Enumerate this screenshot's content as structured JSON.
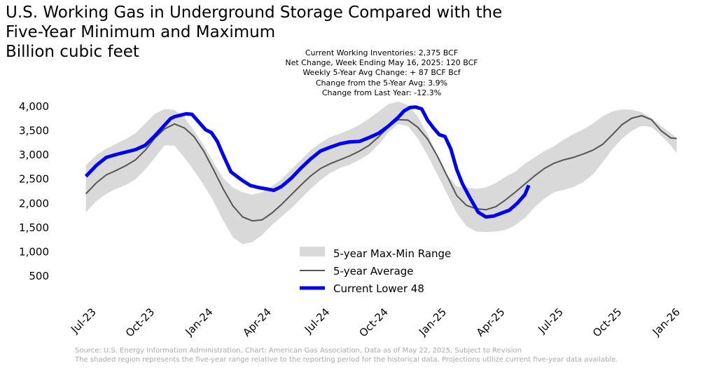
{
  "title_lines": [
    "U.S. Working Gas in Underground Storage Compared with the",
    "Five-Year Minimum and Maximum",
    "Billion cubic feet"
  ],
  "stats": {
    "current_inventory": "Current Working Inventories: 2,375 BCF",
    "net_change": "Net Change, Week Ending May 16, 2025: 120 BCF",
    "weekly_avg_change": "Weekly 5-Year Avg Change: + 87 BCF Bcf",
    "change_vs_avg": "Change from the 5-Year Avg: 3.9%",
    "change_vs_last_year": "Change from Last Year: -12.3%"
  },
  "footer": {
    "line1": "Source: U.S. Energy Information Administration, Chart: American Gas Association, Data as of May 22, 2025, Subject to Revision",
    "line2": "The shaded region represents the five-year range relative to the reporting period for the historical data. Projections utilize current five-year data available."
  },
  "colors": {
    "range_fill": "#d9d9d9",
    "average_line": "#555555",
    "current_line": "#0000ee"
  },
  "chart_data": {
    "type": "line",
    "title": "U.S. Working Gas in Underground Storage Compared with the Five-Year Minimum and Maximum",
    "ylabel": "Billion cubic feet",
    "xlabel": "",
    "x_unit": "months since Jun-2023",
    "xlim": [
      0.8,
      31.2
    ],
    "ylim": [
      0,
      4300
    ],
    "grid": false,
    "legend_position": "lower-center",
    "y_ticks": [
      {
        "value": 500,
        "label": "500"
      },
      {
        "value": 1000,
        "label": "1,000"
      },
      {
        "value": 1500,
        "label": "1,500"
      },
      {
        "value": 2000,
        "label": "2,000"
      },
      {
        "value": 2500,
        "label": "2,500"
      },
      {
        "value": 3000,
        "label": "3,000"
      },
      {
        "value": 3500,
        "label": "3,500"
      },
      {
        "value": 4000,
        "label": "4,000"
      }
    ],
    "x_ticks": [
      {
        "value": 1,
        "label": "Jul-23"
      },
      {
        "value": 4,
        "label": "Oct-23"
      },
      {
        "value": 7,
        "label": "Jan-24"
      },
      {
        "value": 10,
        "label": "Apr-24"
      },
      {
        "value": 13,
        "label": "Jul-24"
      },
      {
        "value": 16,
        "label": "Oct-24"
      },
      {
        "value": 19,
        "label": "Jan-25"
      },
      {
        "value": 22,
        "label": "Apr-25"
      },
      {
        "value": 25,
        "label": "Jul-25"
      },
      {
        "value": 28,
        "label": "Oct-25"
      },
      {
        "value": 31,
        "label": "Jan-26"
      }
    ],
    "series": [
      {
        "name": "5-year Max-Min Range",
        "kind": "band",
        "x": [
          0.45,
          1.0,
          1.5,
          2.0,
          2.5,
          3.0,
          3.5,
          4.0,
          4.5,
          5.0,
          5.5,
          6.0,
          6.5,
          7.0,
          7.5,
          8.0,
          8.5,
          9.0,
          9.5,
          10.0,
          10.5,
          11.0,
          11.5,
          12.0,
          12.5,
          13.0,
          13.5,
          14.0,
          14.5,
          15.0,
          15.5,
          16.0,
          16.5,
          17.0,
          17.5,
          18.0,
          18.5,
          19.0,
          19.5,
          20.0,
          20.5,
          21.0,
          21.5,
          22.0,
          22.5,
          23.0,
          23.5,
          24.0,
          24.5,
          25.0,
          25.5,
          26.0,
          26.5,
          27.0,
          27.5,
          28.0,
          28.5,
          29.0,
          29.5,
          30.0,
          30.5,
          30.8
        ],
        "max": [
          2790,
          3000,
          3130,
          3230,
          3330,
          3450,
          3650,
          3850,
          3950,
          3930,
          3780,
          3500,
          3200,
          2850,
          2520,
          2330,
          2230,
          2180,
          2230,
          2350,
          2500,
          2700,
          2900,
          3100,
          3250,
          3370,
          3440,
          3520,
          3620,
          3750,
          3900,
          4050,
          4100,
          4030,
          3790,
          3430,
          3000,
          2600,
          2350,
          2330,
          2300,
          2330,
          2420,
          2550,
          2650,
          2820,
          2950,
          3080,
          3180,
          3320,
          3430,
          3530,
          3650,
          3800,
          3900,
          3940,
          3930,
          3880,
          3760,
          3600,
          3450,
          3350
        ],
        "min": [
          1820,
          2050,
          2200,
          2300,
          2380,
          2500,
          2700,
          2950,
          3200,
          3190,
          2950,
          2680,
          2380,
          2050,
          1650,
          1300,
          1160,
          1200,
          1350,
          1550,
          1730,
          1900,
          2100,
          2300,
          2480,
          2630,
          2730,
          2800,
          2900,
          3020,
          3220,
          3470,
          3640,
          3590,
          3340,
          2990,
          2600,
          2200,
          1800,
          1530,
          1420,
          1410,
          1420,
          1450,
          1550,
          1700,
          1920,
          2100,
          2230,
          2280,
          2340,
          2440,
          2600,
          2850,
          3120,
          3340,
          3500,
          3600,
          3580,
          3400,
          3200,
          3030
        ]
      },
      {
        "name": "5-year Average",
        "kind": "line",
        "x": [
          0.45,
          1.0,
          1.5,
          2.0,
          2.5,
          3.0,
          3.5,
          4.0,
          4.5,
          5.0,
          5.5,
          6.0,
          6.5,
          7.0,
          7.5,
          8.0,
          8.5,
          9.0,
          9.5,
          10.0,
          10.5,
          11.0,
          11.5,
          12.0,
          12.5,
          13.0,
          13.5,
          14.0,
          14.5,
          15.0,
          15.5,
          16.0,
          16.5,
          17.0,
          17.5,
          18.0,
          18.5,
          19.0,
          19.5,
          20.0,
          20.5,
          21.0,
          21.5,
          22.0,
          22.5,
          23.0,
          23.5,
          24.0,
          24.5,
          25.0,
          25.5,
          26.0,
          26.5,
          27.0,
          27.5,
          28.0,
          28.5,
          29.0,
          29.5,
          30.0,
          30.5,
          30.8
        ],
        "values": [
          2200,
          2430,
          2590,
          2680,
          2780,
          2900,
          3100,
          3350,
          3540,
          3640,
          3560,
          3380,
          3080,
          2700,
          2300,
          1950,
          1720,
          1640,
          1660,
          1800,
          1980,
          2180,
          2380,
          2570,
          2720,
          2820,
          2900,
          2980,
          3080,
          3200,
          3380,
          3580,
          3730,
          3720,
          3570,
          3330,
          2980,
          2570,
          2160,
          1960,
          1890,
          1870,
          1930,
          2070,
          2230,
          2400,
          2570,
          2720,
          2830,
          2900,
          2950,
          3020,
          3100,
          3220,
          3420,
          3630,
          3760,
          3810,
          3730,
          3500,
          3350,
          3340
        ]
      },
      {
        "name": "Current Lower 48",
        "kind": "line",
        "x": [
          0.45,
          1.0,
          1.5,
          2.0,
          2.5,
          3.0,
          3.5,
          4.0,
          4.5,
          4.8,
          5.0,
          5.3,
          5.6,
          5.9,
          6.2,
          6.6,
          6.9,
          7.2,
          7.5,
          7.9,
          8.2,
          8.5,
          8.9,
          9.3,
          9.7,
          10.1,
          10.5,
          11.0,
          11.5,
          12.0,
          12.5,
          13.0,
          13.5,
          14.0,
          14.5,
          15.0,
          15.5,
          16.0,
          16.5,
          16.8,
          17.1,
          17.4,
          17.7,
          18.0,
          18.3,
          18.6,
          18.9,
          19.2,
          19.5,
          19.8,
          20.2,
          20.6,
          21.0,
          21.4,
          21.8,
          22.2,
          22.6,
          23.0,
          23.2
        ],
        "values": [
          2560,
          2790,
          2950,
          3010,
          3060,
          3110,
          3200,
          3400,
          3620,
          3750,
          3790,
          3820,
          3850,
          3840,
          3700,
          3520,
          3460,
          3280,
          3000,
          2650,
          2560,
          2470,
          2370,
          2330,
          2300,
          2270,
          2350,
          2520,
          2730,
          2920,
          3080,
          3160,
          3230,
          3270,
          3280,
          3360,
          3450,
          3600,
          3780,
          3910,
          3980,
          3990,
          3950,
          3720,
          3560,
          3420,
          3380,
          3120,
          2700,
          2400,
          2100,
          1820,
          1720,
          1740,
          1800,
          1860,
          2000,
          2180,
          2375
        ]
      }
    ]
  }
}
